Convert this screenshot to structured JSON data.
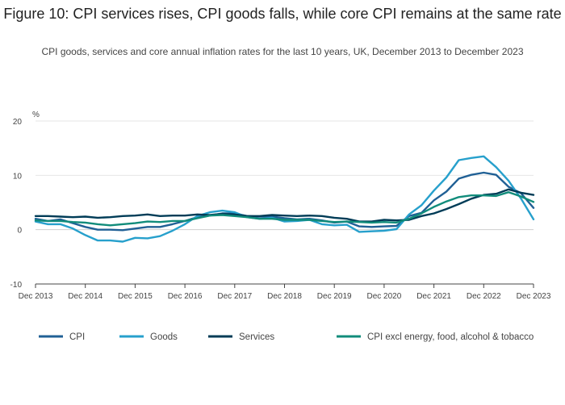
{
  "chart_data": {
    "type": "line",
    "title": "Figure 10: CPI services rises, CPI goods falls, while core CPI remains at the same rate",
    "subtitle": "CPI goods, services and core annual inflation rates for the last 10 years, UK, December 2013 to December 2023",
    "ylabel": "%",
    "ylim": [
      -10,
      20
    ],
    "yticks": [
      -10,
      0,
      10,
      20
    ],
    "xlim": [
      "2013-12",
      "2023-12"
    ],
    "xtick_labels": [
      "Dec 2013",
      "Dec 2014",
      "Dec 2015",
      "Dec 2016",
      "Dec 2017",
      "Dec 2018",
      "Dec 2019",
      "Dec 2020",
      "Dec 2021",
      "Dec 2022",
      "Dec 2023"
    ],
    "grid": true,
    "legend": "bottom",
    "x": [
      "2013-12",
      "2014-03",
      "2014-06",
      "2014-09",
      "2014-12",
      "2015-03",
      "2015-06",
      "2015-09",
      "2015-12",
      "2016-03",
      "2016-06",
      "2016-09",
      "2016-12",
      "2017-03",
      "2017-06",
      "2017-09",
      "2017-12",
      "2018-03",
      "2018-06",
      "2018-09",
      "2018-12",
      "2019-03",
      "2019-06",
      "2019-09",
      "2019-12",
      "2020-03",
      "2020-06",
      "2020-09",
      "2020-12",
      "2021-03",
      "2021-06",
      "2021-09",
      "2021-12",
      "2022-03",
      "2022-06",
      "2022-09",
      "2022-12",
      "2023-03",
      "2023-06",
      "2023-09",
      "2023-12"
    ],
    "series": [
      {
        "name": "CPI",
        "color": "#206095",
        "values": [
          2.0,
          1.6,
          1.9,
          1.2,
          0.5,
          0.0,
          0.0,
          -0.1,
          0.2,
          0.5,
          0.5,
          1.0,
          1.6,
          2.3,
          2.6,
          3.0,
          3.0,
          2.5,
          2.4,
          2.4,
          2.1,
          1.9,
          2.0,
          1.7,
          1.3,
          1.5,
          0.6,
          0.5,
          0.6,
          0.7,
          2.5,
          3.1,
          5.4,
          7.0,
          9.4,
          10.1,
          10.5,
          10.1,
          7.9,
          6.7,
          4.0
        ]
      },
      {
        "name": "Goods",
        "color": "#27a0cc",
        "values": [
          1.5,
          1.0,
          1.0,
          0.2,
          -1.0,
          -2.0,
          -2.0,
          -2.2,
          -1.5,
          -1.6,
          -1.2,
          -0.2,
          1.0,
          2.5,
          3.2,
          3.5,
          3.2,
          2.3,
          2.0,
          2.2,
          1.5,
          1.6,
          1.8,
          1.0,
          0.8,
          0.9,
          -0.4,
          -0.3,
          -0.2,
          0.1,
          2.8,
          4.5,
          7.2,
          9.6,
          12.8,
          13.2,
          13.5,
          11.5,
          9.0,
          5.7,
          1.9
        ]
      },
      {
        "name": "Services",
        "color": "#003c57",
        "values": [
          2.5,
          2.5,
          2.4,
          2.3,
          2.4,
          2.2,
          2.3,
          2.5,
          2.6,
          2.8,
          2.5,
          2.6,
          2.6,
          2.8,
          2.7,
          2.9,
          2.8,
          2.5,
          2.5,
          2.7,
          2.6,
          2.5,
          2.6,
          2.5,
          2.2,
          2.0,
          1.5,
          1.5,
          1.8,
          1.7,
          1.8,
          2.5,
          3.0,
          3.8,
          4.7,
          5.7,
          6.4,
          6.6,
          7.4,
          6.8,
          6.4
        ]
      },
      {
        "name": "CPI excl energy, food, alcohol & tobacco",
        "color": "#118c7b",
        "values": [
          1.7,
          1.6,
          1.6,
          1.4,
          1.3,
          1.0,
          0.8,
          1.0,
          1.2,
          1.5,
          1.4,
          1.6,
          1.6,
          2.1,
          2.6,
          2.7,
          2.5,
          2.3,
          2.0,
          2.0,
          1.8,
          1.8,
          1.8,
          1.6,
          1.4,
          1.5,
          1.4,
          1.3,
          1.4,
          1.3,
          2.0,
          3.0,
          4.2,
          5.2,
          6.0,
          6.3,
          6.3,
          6.2,
          6.9,
          6.1,
          5.1
        ]
      }
    ]
  }
}
